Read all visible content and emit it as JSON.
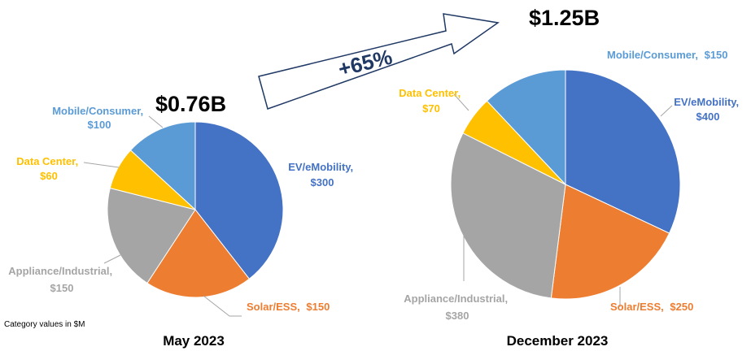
{
  "chart_data": [
    {
      "type": "pie",
      "title": "May 2023",
      "total_label": "$0.76B",
      "unit": "$M",
      "start": "12 o'clock, clockwise",
      "slices": [
        {
          "key": "ev",
          "label": "EV/eMobility,",
          "value_label": "$300",
          "value": 300
        },
        {
          "key": "solar",
          "label": "Solar/ESS,",
          "value_label": "$150",
          "value": 150
        },
        {
          "key": "appliance",
          "label": "Appliance/Industrial,",
          "value_label": "$150",
          "value": 150
        },
        {
          "key": "datacenter",
          "label": "Data Center,",
          "value_label": "$60",
          "value": 60
        },
        {
          "key": "mobile",
          "label": "Mobile/Consumer,",
          "value_label": "$100",
          "value": 100
        }
      ]
    },
    {
      "type": "pie",
      "title": "December 2023",
      "total_label": "$1.25B",
      "unit": "$M",
      "start": "12 o'clock, clockwise",
      "slices": [
        {
          "key": "ev",
          "label": "EV/eMobility,",
          "value_label": "$400",
          "value": 400
        },
        {
          "key": "solar",
          "label": "Solar/ESS,",
          "value_label": "$250",
          "value": 250
        },
        {
          "key": "appliance",
          "label": "Appliance/Industrial,",
          "value_label": "$380",
          "value": 380
        },
        {
          "key": "datacenter",
          "label": "Data Center,",
          "value_label": "$70",
          "value": 70
        },
        {
          "key": "mobile",
          "label": "Mobile/Consumer,",
          "value_label": "$150",
          "value": 150
        }
      ]
    }
  ],
  "colors": {
    "ev": "#4472c4",
    "solar": "#ed7d31",
    "appliance": "#a5a5a5",
    "datacenter": "#ffc000",
    "mobile": "#5b9bd5",
    "arrow_border": "#1f3864",
    "growth_text": "#1f3864"
  },
  "growth_label": "+65%",
  "note": "Category values in $M"
}
